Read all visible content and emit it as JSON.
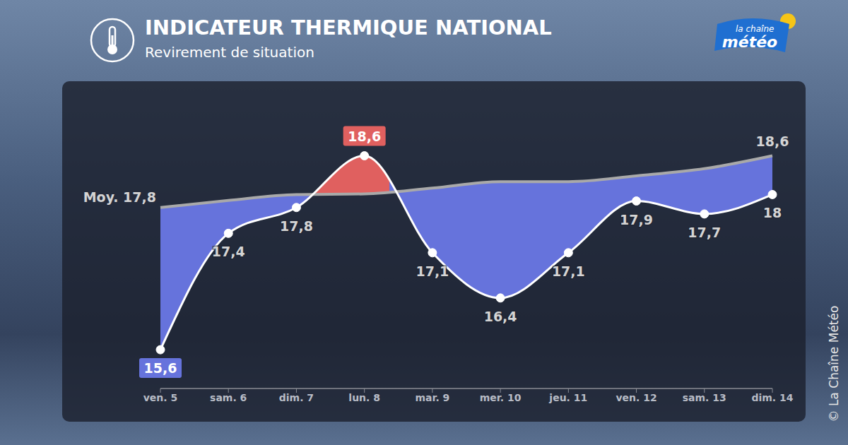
{
  "chart_data": {
    "type": "line",
    "title": "INDICATEUR THERMIQUE NATIONAL",
    "subtitle": "Revirement de situation",
    "categories": [
      "ven. 5",
      "sam. 6",
      "dim. 7",
      "lun. 8",
      "mar. 9",
      "mer. 10",
      "jeu. 11",
      "ven. 12",
      "sam. 13",
      "dim. 14"
    ],
    "series": [
      {
        "color": "#ffffff",
        "marker": "circle",
        "values": [
          15.6,
          17.4,
          17.8,
          18.6,
          17.1,
          16.4,
          17.1,
          17.9,
          17.7,
          18
        ],
        "value_labels": [
          "15,6",
          "17,4",
          "17,8",
          "18,6",
          "17,1",
          "16,4",
          "17,1",
          "17,9",
          "17,7",
          "18"
        ]
      },
      {
        "name": "Moy.",
        "color": "#a9a9a9",
        "values": [
          17.8,
          17.91,
          18.0,
          18.01,
          18.1,
          18.2,
          18.2,
          18.29,
          18.4,
          18.6
        ],
        "value_labels": [
          "17,8",
          null,
          null,
          null,
          null,
          null,
          null,
          null,
          null,
          "18,6"
        ]
      }
    ],
    "colors": [
      "#6673dc",
      "#e0605f"
    ],
    "ylim": [
      15,
      19.6
    ],
    "grid": false,
    "tick_labels": "x",
    "data_labels": true
  },
  "branding": {
    "logo_top": "la chaîne",
    "logo_bottom": "météo",
    "credit": "© La Chaîne Météo"
  }
}
